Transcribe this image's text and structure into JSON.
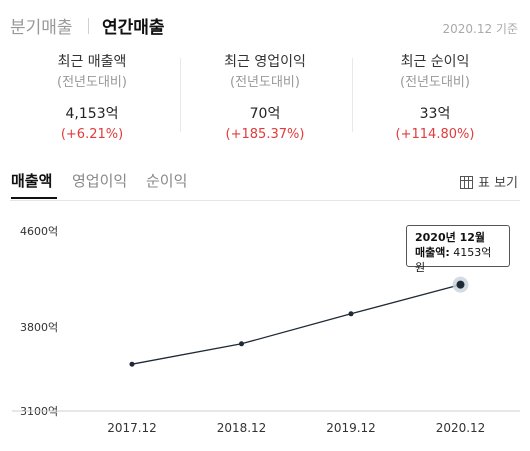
{
  "header": {
    "tab_quarterly": "분기매출",
    "tab_yearly": "연간매출",
    "as_of": "2020.12 기준"
  },
  "summary": [
    {
      "title": "최근 매출액",
      "sub": "(전년도대비)",
      "value": "4,153억",
      "change": "(+6.21%)"
    },
    {
      "title": "최근 영업이익",
      "sub": "(전년도대비)",
      "value": "70억",
      "change": "(+185.37%)"
    },
    {
      "title": "최근 순이익",
      "sub": "(전년도대비)",
      "value": "33억",
      "change": "(+114.80%)"
    }
  ],
  "subtabs": {
    "items": [
      "매출액",
      "영업이익",
      "순이익"
    ],
    "active": "매출액",
    "table_view": "표 보기"
  },
  "tooltip": {
    "title": "2020년 12월",
    "key": "매출액:",
    "value": "4153억원"
  },
  "colors": {
    "line": "#1f2a36",
    "positive": "#e03c3c",
    "grid": "#e6e6e6"
  },
  "chart_data": {
    "type": "line",
    "categories": [
      "2017.12",
      "2018.12",
      "2019.12",
      "2020.12"
    ],
    "series": [
      {
        "values": [
          3490,
          3660,
          3910,
          4153
        ]
      }
    ],
    "y_ticks": [
      "4600억",
      "3800억",
      "3100억"
    ],
    "y_tick_values": [
      4600,
      3800,
      3100
    ],
    "ylim": [
      3100,
      4600
    ],
    "highlight_index": 3,
    "grid": false
  }
}
